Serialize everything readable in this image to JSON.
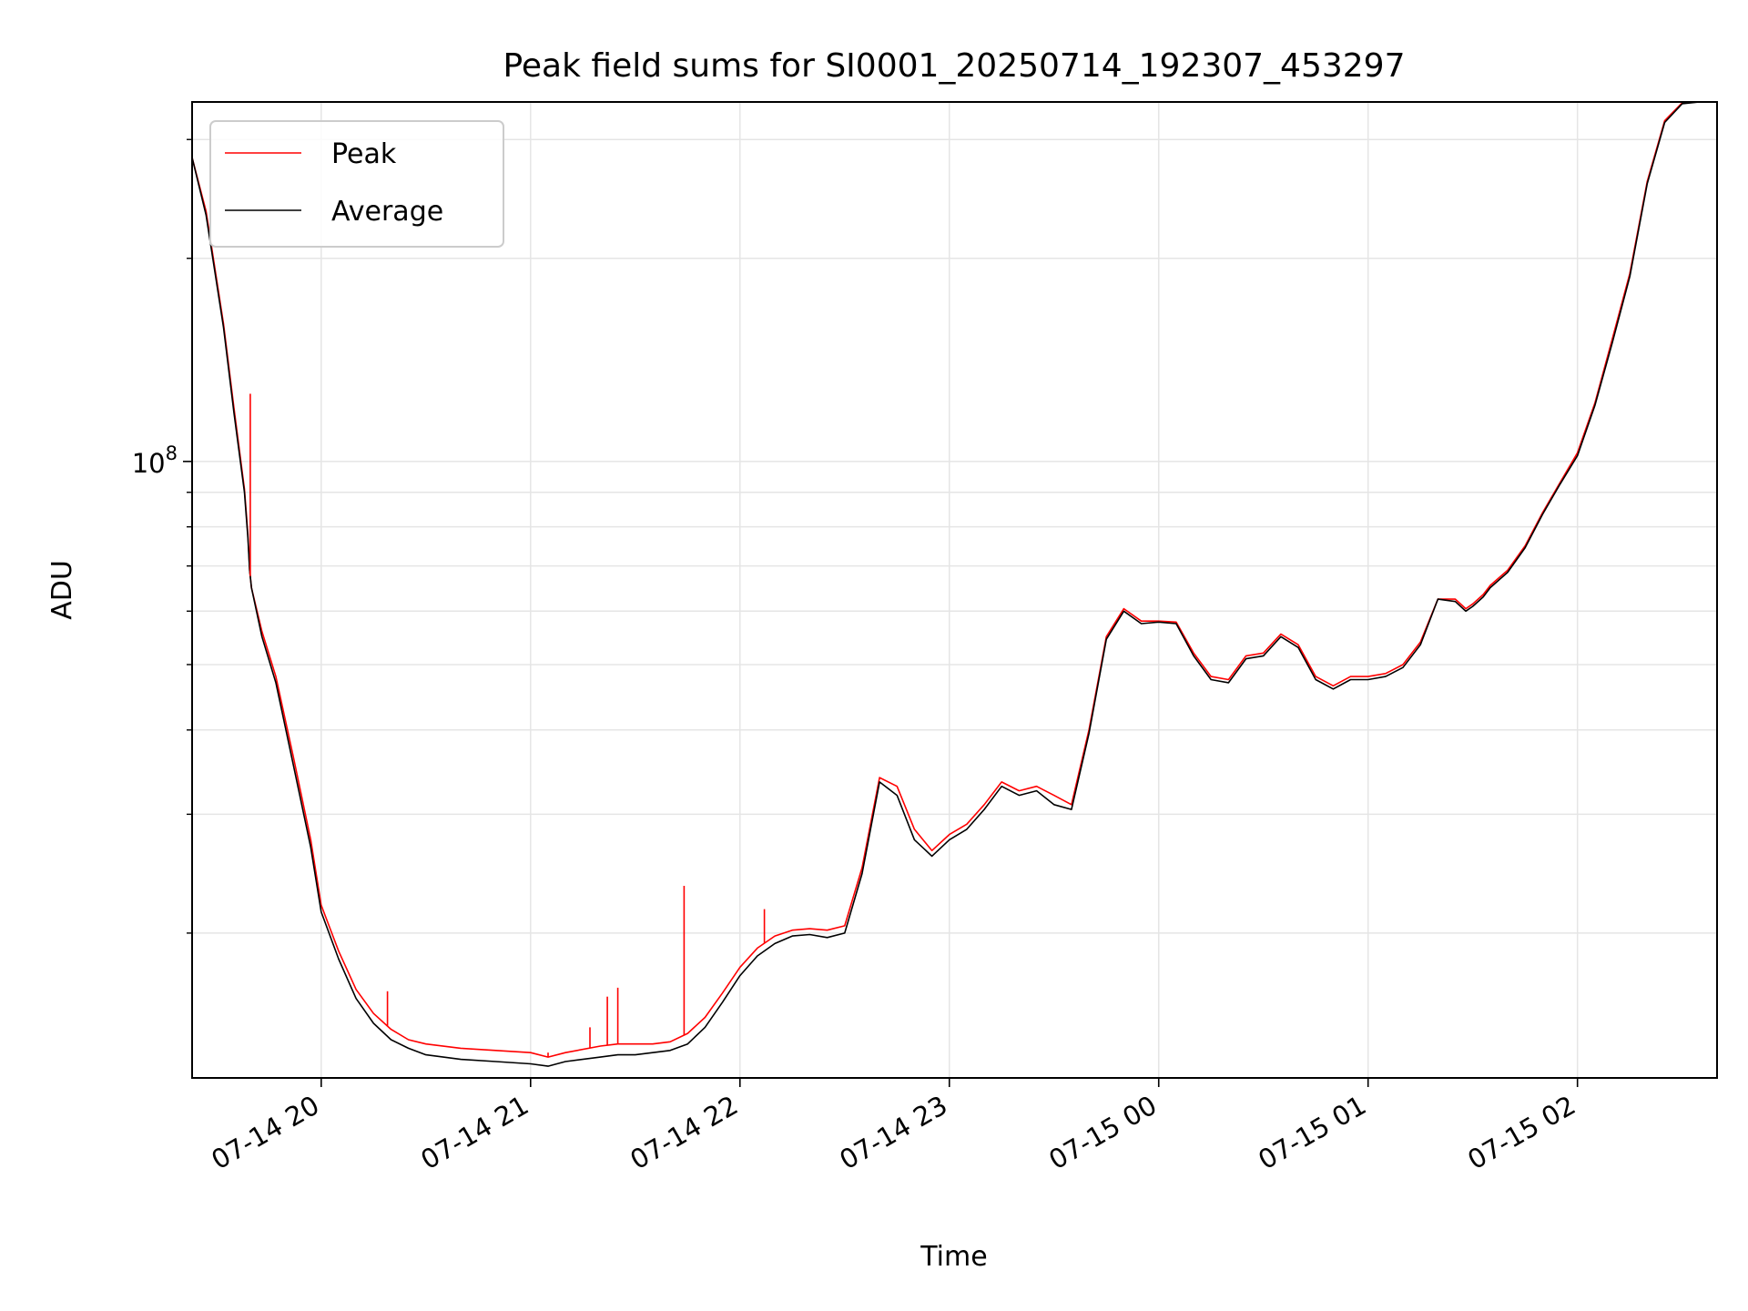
{
  "chart_data": {
    "type": "line",
    "title": "Peak field sums for SI0001_20250714_192307_453297",
    "xlabel": "Time",
    "ylabel": "ADU",
    "yscale": "log",
    "grid": true,
    "legend_position": "upper-left",
    "xlim": [
      "2025-07-14T19:23:00",
      "2025-07-15T02:40:00"
    ],
    "ylim": [
      12200000,
      341000000
    ],
    "x_ticks": [
      {
        "t": "2025-07-14T20:00:00",
        "label": "07-14 20"
      },
      {
        "t": "2025-07-14T21:00:00",
        "label": "07-14 21"
      },
      {
        "t": "2025-07-14T22:00:00",
        "label": "07-14 22"
      },
      {
        "t": "2025-07-14T23:00:00",
        "label": "07-14 23"
      },
      {
        "t": "2025-07-15T00:00:00",
        "label": "07-15 00"
      },
      {
        "t": "2025-07-15T01:00:00",
        "label": "07-15 01"
      },
      {
        "t": "2025-07-15T02:00:00",
        "label": "07-15 02"
      }
    ],
    "y_major_ticks": [
      {
        "value": 100000000,
        "base": "10",
        "exp": "8"
      }
    ],
    "y_minor_ticks": [
      20000000,
      30000000,
      40000000,
      50000000,
      60000000,
      70000000,
      80000000,
      90000000,
      200000000,
      300000000
    ],
    "series": [
      {
        "name": "Peak",
        "color": "#ff0000",
        "x": [
          "2025-07-14T19:23:00",
          "2025-07-14T19:27:00",
          "2025-07-14T19:32:00",
          "2025-07-14T19:35:00",
          "2025-07-14T19:38:00",
          "2025-07-14T19:39:00",
          "2025-07-14T19:39:30",
          "2025-07-14T19:40:00",
          "2025-07-14T19:43:00",
          "2025-07-14T19:47:00",
          "2025-07-14T19:52:00",
          "2025-07-14T19:57:00",
          "2025-07-14T20:00:00",
          "2025-07-14T20:05:00",
          "2025-07-14T20:10:00",
          "2025-07-14T20:15:00",
          "2025-07-14T20:20:00",
          "2025-07-14T20:25:00",
          "2025-07-14T20:30:00",
          "2025-07-14T20:40:00",
          "2025-07-14T20:50:00",
          "2025-07-14T21:00:00",
          "2025-07-14T21:05:00",
          "2025-07-14T21:10:00",
          "2025-07-14T21:20:00",
          "2025-07-14T21:25:00",
          "2025-07-14T21:30:00",
          "2025-07-14T21:35:00",
          "2025-07-14T21:40:00",
          "2025-07-14T21:45:00",
          "2025-07-14T21:50:00",
          "2025-07-14T21:55:00",
          "2025-07-14T22:00:00",
          "2025-07-14T22:05:00",
          "2025-07-14T22:10:00",
          "2025-07-14T22:15:00",
          "2025-07-14T22:20:00",
          "2025-07-14T22:25:00",
          "2025-07-14T22:30:00",
          "2025-07-14T22:35:00",
          "2025-07-14T22:40:00",
          "2025-07-14T22:45:00",
          "2025-07-14T22:50:00",
          "2025-07-14T22:55:00",
          "2025-07-14T23:00:00",
          "2025-07-14T23:05:00",
          "2025-07-14T23:10:00",
          "2025-07-14T23:15:00",
          "2025-07-14T23:20:00",
          "2025-07-14T23:25:00",
          "2025-07-14T23:30:00",
          "2025-07-14T23:35:00",
          "2025-07-14T23:40:00",
          "2025-07-14T23:45:00",
          "2025-07-14T23:50:00",
          "2025-07-14T23:55:00",
          "2025-07-15T00:00:00",
          "2025-07-15T00:05:00",
          "2025-07-15T00:10:00",
          "2025-07-15T00:15:00",
          "2025-07-15T00:20:00",
          "2025-07-15T00:25:00",
          "2025-07-15T00:30:00",
          "2025-07-15T00:35:00",
          "2025-07-15T00:40:00",
          "2025-07-15T00:45:00",
          "2025-07-15T00:50:00",
          "2025-07-15T00:55:00",
          "2025-07-15T01:00:00",
          "2025-07-15T01:05:00",
          "2025-07-15T01:10:00",
          "2025-07-15T01:15:00",
          "2025-07-15T01:20:00",
          "2025-07-15T01:25:00",
          "2025-07-15T01:28:00",
          "2025-07-15T01:30:00",
          "2025-07-15T01:33:00",
          "2025-07-15T01:35:00",
          "2025-07-15T01:40:00",
          "2025-07-15T01:45:00",
          "2025-07-15T01:50:00",
          "2025-07-15T01:55:00",
          "2025-07-15T02:00:00",
          "2025-07-15T02:05:00",
          "2025-07-15T02:10:00",
          "2025-07-15T02:15:00",
          "2025-07-15T02:20:00",
          "2025-07-15T02:25:00",
          "2025-07-15T02:30:00",
          "2025-07-15T02:35:00",
          "2025-07-15T02:40:00"
        ],
        "values": [
          282000000,
          235000000,
          160000000,
          120000000,
          91000000,
          78000000,
          69000000,
          65000000,
          56000000,
          48000000,
          36500000,
          27500000,
          22000000,
          18800000,
          16500000,
          15200000,
          14400000,
          13900000,
          13700000,
          13500000,
          13400000,
          13300000,
          13100000,
          13300000,
          13600000,
          13700000,
          13700000,
          13700000,
          13800000,
          14200000,
          15000000,
          16300000,
          17800000,
          19000000,
          19800000,
          20200000,
          20300000,
          20200000,
          20500000,
          25000000,
          34000000,
          33000000,
          28500000,
          26500000,
          28000000,
          29000000,
          31000000,
          33500000,
          32500000,
          33000000,
          32000000,
          31000000,
          40000000,
          55000000,
          60500000,
          58000000,
          58000000,
          57800000,
          52000000,
          48000000,
          47500000,
          51500000,
          52000000,
          55500000,
          53500000,
          48000000,
          46500000,
          48000000,
          48000000,
          48500000,
          50000000,
          54000000,
          62500000,
          62500000,
          60500000,
          61500000,
          63500000,
          65500000,
          69000000,
          75000000,
          84000000,
          93000000,
          103000000,
          122000000,
          152000000,
          190000000,
          260000000,
          320000000,
          340000000,
          341000000,
          341000000
        ]
      },
      {
        "name": "Average",
        "color": "#000000",
        "x": [
          "2025-07-14T19:23:00",
          "2025-07-14T19:27:00",
          "2025-07-14T19:32:00",
          "2025-07-14T19:35:00",
          "2025-07-14T19:38:00",
          "2025-07-14T19:39:00",
          "2025-07-14T19:39:30",
          "2025-07-14T19:40:00",
          "2025-07-14T19:43:00",
          "2025-07-14T19:47:00",
          "2025-07-14T19:52:00",
          "2025-07-14T19:57:00",
          "2025-07-14T20:00:00",
          "2025-07-14T20:05:00",
          "2025-07-14T20:10:00",
          "2025-07-14T20:15:00",
          "2025-07-14T20:20:00",
          "2025-07-14T20:25:00",
          "2025-07-14T20:30:00",
          "2025-07-14T20:40:00",
          "2025-07-14T20:50:00",
          "2025-07-14T21:00:00",
          "2025-07-14T21:05:00",
          "2025-07-14T21:10:00",
          "2025-07-14T21:20:00",
          "2025-07-14T21:25:00",
          "2025-07-14T21:30:00",
          "2025-07-14T21:35:00",
          "2025-07-14T21:40:00",
          "2025-07-14T21:45:00",
          "2025-07-14T21:50:00",
          "2025-07-14T21:55:00",
          "2025-07-14T22:00:00",
          "2025-07-14T22:05:00",
          "2025-07-14T22:10:00",
          "2025-07-14T22:15:00",
          "2025-07-14T22:20:00",
          "2025-07-14T22:25:00",
          "2025-07-14T22:30:00",
          "2025-07-14T22:35:00",
          "2025-07-14T22:40:00",
          "2025-07-14T22:45:00",
          "2025-07-14T22:50:00",
          "2025-07-14T22:55:00",
          "2025-07-14T23:00:00",
          "2025-07-14T23:05:00",
          "2025-07-14T23:10:00",
          "2025-07-14T23:15:00",
          "2025-07-14T23:20:00",
          "2025-07-14T23:25:00",
          "2025-07-14T23:30:00",
          "2025-07-14T23:35:00",
          "2025-07-14T23:40:00",
          "2025-07-14T23:45:00",
          "2025-07-14T23:50:00",
          "2025-07-14T23:55:00",
          "2025-07-15T00:00:00",
          "2025-07-15T00:05:00",
          "2025-07-15T00:10:00",
          "2025-07-15T00:15:00",
          "2025-07-15T00:20:00",
          "2025-07-15T00:25:00",
          "2025-07-15T00:30:00",
          "2025-07-15T00:35:00",
          "2025-07-15T00:40:00",
          "2025-07-15T00:45:00",
          "2025-07-15T00:50:00",
          "2025-07-15T00:55:00",
          "2025-07-15T01:00:00",
          "2025-07-15T01:05:00",
          "2025-07-15T01:10:00",
          "2025-07-15T01:15:00",
          "2025-07-15T01:20:00",
          "2025-07-15T01:25:00",
          "2025-07-15T01:28:00",
          "2025-07-15T01:30:00",
          "2025-07-15T01:33:00",
          "2025-07-15T01:35:00",
          "2025-07-15T01:40:00",
          "2025-07-15T01:45:00",
          "2025-07-15T01:50:00",
          "2025-07-15T01:55:00",
          "2025-07-15T02:00:00",
          "2025-07-15T02:05:00",
          "2025-07-15T02:10:00",
          "2025-07-15T02:15:00",
          "2025-07-15T02:20:00",
          "2025-07-15T02:25:00",
          "2025-07-15T02:30:00",
          "2025-07-15T02:35:00",
          "2025-07-15T02:40:00"
        ],
        "values": [
          282000000,
          232000000,
          158000000,
          118000000,
          90000000,
          77000000,
          69000000,
          65000000,
          55000000,
          47000000,
          35500000,
          26800000,
          21500000,
          18300000,
          16000000,
          14700000,
          13900000,
          13500000,
          13200000,
          13000000,
          12900000,
          12800000,
          12700000,
          12900000,
          13100000,
          13200000,
          13200000,
          13300000,
          13400000,
          13700000,
          14500000,
          15800000,
          17300000,
          18500000,
          19300000,
          19800000,
          19900000,
          19700000,
          20000000,
          24500000,
          33500000,
          32000000,
          27500000,
          26000000,
          27500000,
          28500000,
          30500000,
          33000000,
          32000000,
          32500000,
          31000000,
          30500000,
          39500000,
          54500000,
          60000000,
          57500000,
          57800000,
          57500000,
          51500000,
          47500000,
          47000000,
          51000000,
          51500000,
          55000000,
          53000000,
          47500000,
          46000000,
          47500000,
          47500000,
          48000000,
          49500000,
          53500000,
          62500000,
          62000000,
          60000000,
          61000000,
          63000000,
          65000000,
          68500000,
          74500000,
          83500000,
          92500000,
          102000000,
          121000000,
          150000000,
          188000000,
          258000000,
          318000000,
          339000000,
          341000000,
          341000000
        ]
      }
    ],
    "spikes": {
      "series": "Peak",
      "color": "#ff0000",
      "points": [
        {
          "t": "2025-07-14T19:39:40",
          "value": 126000000
        },
        {
          "t": "2025-07-14T20:19:00",
          "value": 16400000
        },
        {
          "t": "2025-07-14T21:05:00",
          "value": 13300000
        },
        {
          "t": "2025-07-14T21:17:00",
          "value": 14500000
        },
        {
          "t": "2025-07-14T21:22:00",
          "value": 16100000
        },
        {
          "t": "2025-07-14T21:25:00",
          "value": 16600000
        },
        {
          "t": "2025-07-14T21:44:00",
          "value": 23500000
        },
        {
          "t": "2025-07-14T22:07:00",
          "value": 21700000
        }
      ]
    }
  }
}
